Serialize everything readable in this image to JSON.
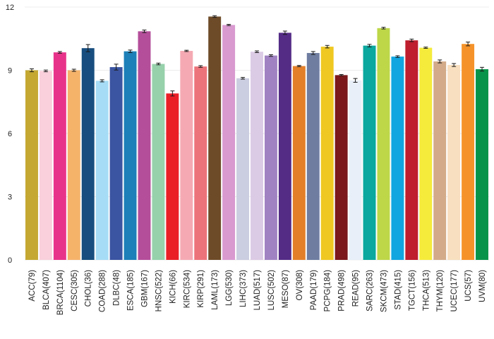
{
  "chart_data": {
    "type": "bar",
    "title": "",
    "xlabel": "",
    "ylabel": "",
    "ylim": [
      0,
      12
    ],
    "yticks": [
      0,
      3,
      6,
      9,
      12
    ],
    "grid": true,
    "legend": "none",
    "categories": [
      "ACC(79)",
      "BLCA(407)",
      "BRCA(1104)",
      "CESC(305)",
      "CHOL(36)",
      "COAD(288)",
      "DLBC(48)",
      "ESCA(185)",
      "GBM(167)",
      "HNSC(522)",
      "KICH(66)",
      "KIRC(534)",
      "KIRP(291)",
      "LAML(173)",
      "LGG(530)",
      "LIHC(373)",
      "LUAD(517)",
      "LUSC(502)",
      "MESO(87)",
      "OV(308)",
      "PAAD(179)",
      "PCPG(184)",
      "PRAD(498)",
      "READ(95)",
      "SARC(263)",
      "SKCM(473)",
      "STAD(415)",
      "TGCT(156)",
      "THCA(513)",
      "THYM(120)",
      "UCEC(177)",
      "UCS(57)",
      "UVM(80)"
    ],
    "values": [
      9.0,
      8.97,
      9.85,
      9.0,
      10.05,
      8.5,
      9.15,
      9.9,
      10.85,
      9.3,
      7.9,
      9.92,
      9.18,
      11.55,
      11.15,
      8.62,
      9.88,
      9.7,
      10.78,
      9.2,
      9.82,
      10.12,
      8.77,
      8.52,
      10.17,
      11.0,
      9.65,
      10.42,
      10.07,
      9.42,
      9.25,
      10.25,
      9.05
    ],
    "errors": [
      0.07,
      0.04,
      0.04,
      0.05,
      0.17,
      0.05,
      0.14,
      0.06,
      0.06,
      0.04,
      0.12,
      0.03,
      0.04,
      0.04,
      0.03,
      0.04,
      0.04,
      0.04,
      0.08,
      0.03,
      0.07,
      0.06,
      0.03,
      0.09,
      0.06,
      0.04,
      0.04,
      0.06,
      0.03,
      0.07,
      0.07,
      0.09,
      0.09
    ],
    "colors": [
      "#c4a832",
      "#f9d0dc",
      "#e8338a",
      "#f5b36a",
      "#174e7f",
      "#a6dcf6",
      "#3b55a2",
      "#1d80b8",
      "#b44e9a",
      "#96d1ab",
      "#ea1f26",
      "#f5aab3",
      "#ec737a",
      "#6e4b28",
      "#d99ad0",
      "#cbcde0",
      "#dccbe5",
      "#a082c2",
      "#542c86",
      "#e37f29",
      "#6e7da0",
      "#efc822",
      "#7b191c",
      "#e8eff8",
      "#0aa89e",
      "#bdd748",
      "#11a6e0",
      "#be1e2d",
      "#f5eb3b",
      "#d3ab8a",
      "#f8dfbf",
      "#f5932a",
      "#07944a"
    ]
  }
}
